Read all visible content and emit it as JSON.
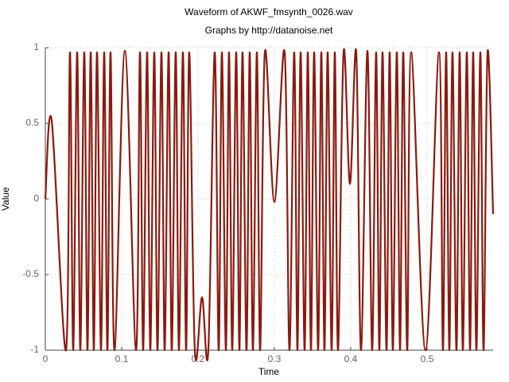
{
  "chart_data": {
    "type": "line",
    "title": "Waveform of AKWF_fmsynth_0026.wav",
    "subtitle": "Graphs by http://datanoise.net",
    "x_label": "Time",
    "y_label": "Value",
    "color": "#8b1a0e",
    "grid": true,
    "xlim": [
      0,
      0.5865
    ],
    "ylim": [
      -1,
      1
    ],
    "xticks": [
      0,
      0.1,
      0.2,
      0.3,
      0.4,
      0.5
    ],
    "yticks": [
      -1,
      -0.5,
      0,
      0.5,
      1
    ],
    "x": [
      0,
      0.0083,
      0.0271,
      0.0323,
      0.0365,
      0.0417,
      0.0458,
      0.051,
      0.0552,
      0.0594,
      0.0635,
      0.0677,
      0.0729,
      0.0771,
      0.0813,
      0.0854,
      0.0906,
      0.1042,
      0.1188,
      0.124,
      0.1281,
      0.1333,
      0.1375,
      0.1427,
      0.1469,
      0.1521,
      0.1563,
      0.1615,
      0.1656,
      0.1708,
      0.175,
      0.1802,
      0.1844,
      0.1885,
      0.1958,
      0.2052,
      0.2135,
      0.2219,
      0.2271,
      0.2313,
      0.2365,
      0.2406,
      0.2448,
      0.25,
      0.2542,
      0.2583,
      0.2635,
      0.2677,
      0.2719,
      0.2771,
      0.2813,
      0.2875,
      0.3,
      0.3135,
      0.3198,
      0.326,
      0.3302,
      0.3344,
      0.3396,
      0.3438,
      0.3479,
      0.3521,
      0.3573,
      0.3615,
      0.3656,
      0.3698,
      0.375,
      0.3792,
      0.3833,
      0.3906,
      0.399,
      0.4073,
      0.4135,
      0.4219,
      0.4281,
      0.4333,
      0.4375,
      0.4417,
      0.4469,
      0.451,
      0.4552,
      0.4604,
      0.4646,
      0.4688,
      0.474,
      0.4792,
      0.4979,
      0.5156,
      0.5208,
      0.525,
      0.5292,
      0.5333,
      0.5385,
      0.5427,
      0.5469,
      0.5521,
      0.5563,
      0.5604,
      0.5646,
      0.5698,
      0.574,
      0.5792,
      0.5865
    ],
    "values": [
      0,
      0.52,
      -1,
      0.97,
      -1,
      0.97,
      -1,
      0.97,
      -1,
      0.97,
      -1,
      0.97,
      -1,
      0.97,
      -1,
      0.97,
      -1,
      0.98,
      -1,
      0.97,
      -1,
      0.97,
      -1,
      0.97,
      -1,
      0.97,
      -1,
      0.97,
      -1,
      0.97,
      -1,
      0.97,
      -1,
      0.97,
      -1,
      -0.65,
      -1,
      0.97,
      -1,
      0.97,
      -1,
      0.97,
      -1,
      0.97,
      -1,
      0.97,
      -1,
      0.97,
      -1,
      0.97,
      -1,
      0.97,
      -0.02,
      0.97,
      -1,
      0.97,
      -1,
      0.97,
      -1,
      0.97,
      -1,
      0.97,
      -1,
      0.97,
      -1,
      0.97,
      -1,
      0.97,
      -1,
      0.97,
      0.1,
      0.97,
      -1,
      0.98,
      -1,
      0.97,
      -1,
      0.97,
      -1,
      0.97,
      -1,
      0.97,
      -1,
      0.97,
      -1,
      0.97,
      -1,
      0.97,
      -1,
      0.97,
      -1,
      0.97,
      -1,
      0.97,
      -1,
      0.97,
      -1,
      0.97,
      -1,
      0.97,
      -1,
      0.97,
      -0.1
    ]
  }
}
